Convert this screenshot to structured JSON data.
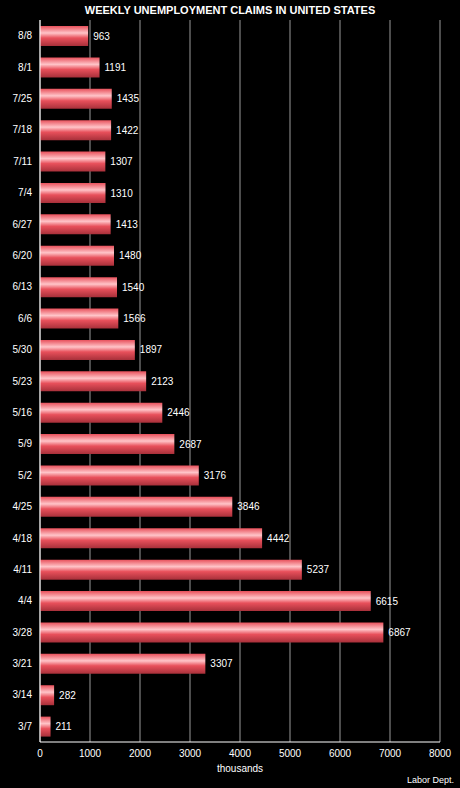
{
  "chart_data": {
    "type": "bar",
    "title": "WEEKLY UNEMPLOYMENT CLAIMS IN UNITED STATES",
    "x_label": "thousands",
    "annotation": "Labor Dept.",
    "orientation": "horizontal",
    "categories": [
      "8/8",
      "8/1",
      "7/25",
      "7/18",
      "7/11",
      "7/4",
      "6/27",
      "6/20",
      "6/13",
      "6/6",
      "5/30",
      "5/23",
      "5/16",
      "5/9",
      "5/2",
      "4/25",
      "4/18",
      "4/11",
      "4/4",
      "3/28",
      "3/21",
      "3/14",
      "3/7"
    ],
    "values": [
      963,
      1191,
      1435,
      1422,
      1307,
      1310,
      1413,
      1480,
      1540,
      1566,
      1897,
      2123,
      2446,
      2687,
      3176,
      3846,
      4442,
      5237,
      6615,
      6867,
      3307,
      282,
      211
    ],
    "color": "#e8505b",
    "xlim": [
      0,
      8000
    ],
    "xticks": [
      0,
      1000,
      2000,
      3000,
      4000,
      5000,
      6000,
      7000,
      8000
    ],
    "grid": true,
    "data_labels": true
  }
}
